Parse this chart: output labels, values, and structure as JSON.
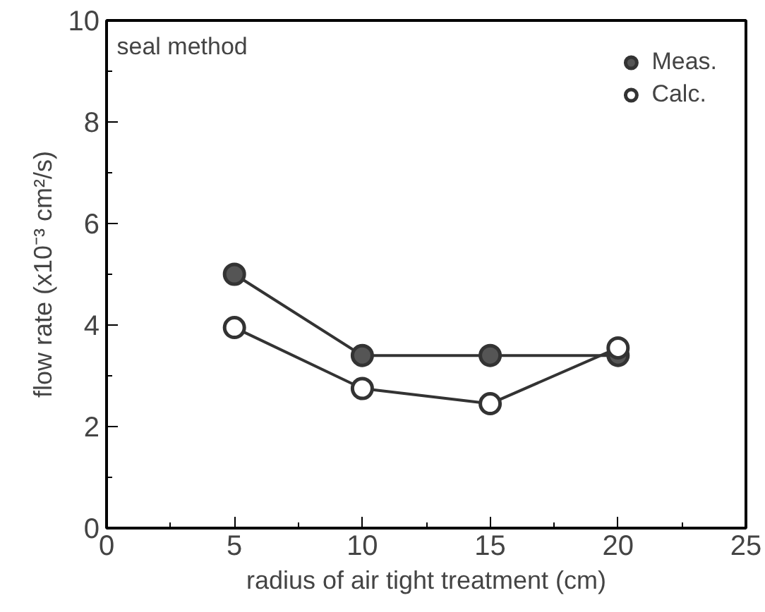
{
  "chart_data": {
    "type": "line",
    "xlabel": "radius of air tight treatment (cm)",
    "ylabel": "flow rate (x10⁻³ cm²/s)",
    "x": [
      5,
      10,
      15,
      20
    ],
    "series": [
      {
        "name": "Meas.",
        "color": "#555555",
        "values": [
          5.0,
          3.4,
          3.4,
          3.4
        ]
      },
      {
        "name": "Calc.",
        "color": "#ffffff",
        "values": [
          3.95,
          2.75,
          2.45,
          3.55
        ]
      }
    ],
    "xlim": [
      0,
      25
    ],
    "xticks": [
      0,
      5,
      10,
      15,
      20,
      25
    ],
    "ylim": [
      0,
      10
    ],
    "yticks": [
      0,
      2,
      4,
      6,
      8,
      10
    ],
    "annotations": [
      "seal method"
    ],
    "legend": "top right",
    "grid": false,
    "marker": "circle",
    "line_style": "solid"
  }
}
